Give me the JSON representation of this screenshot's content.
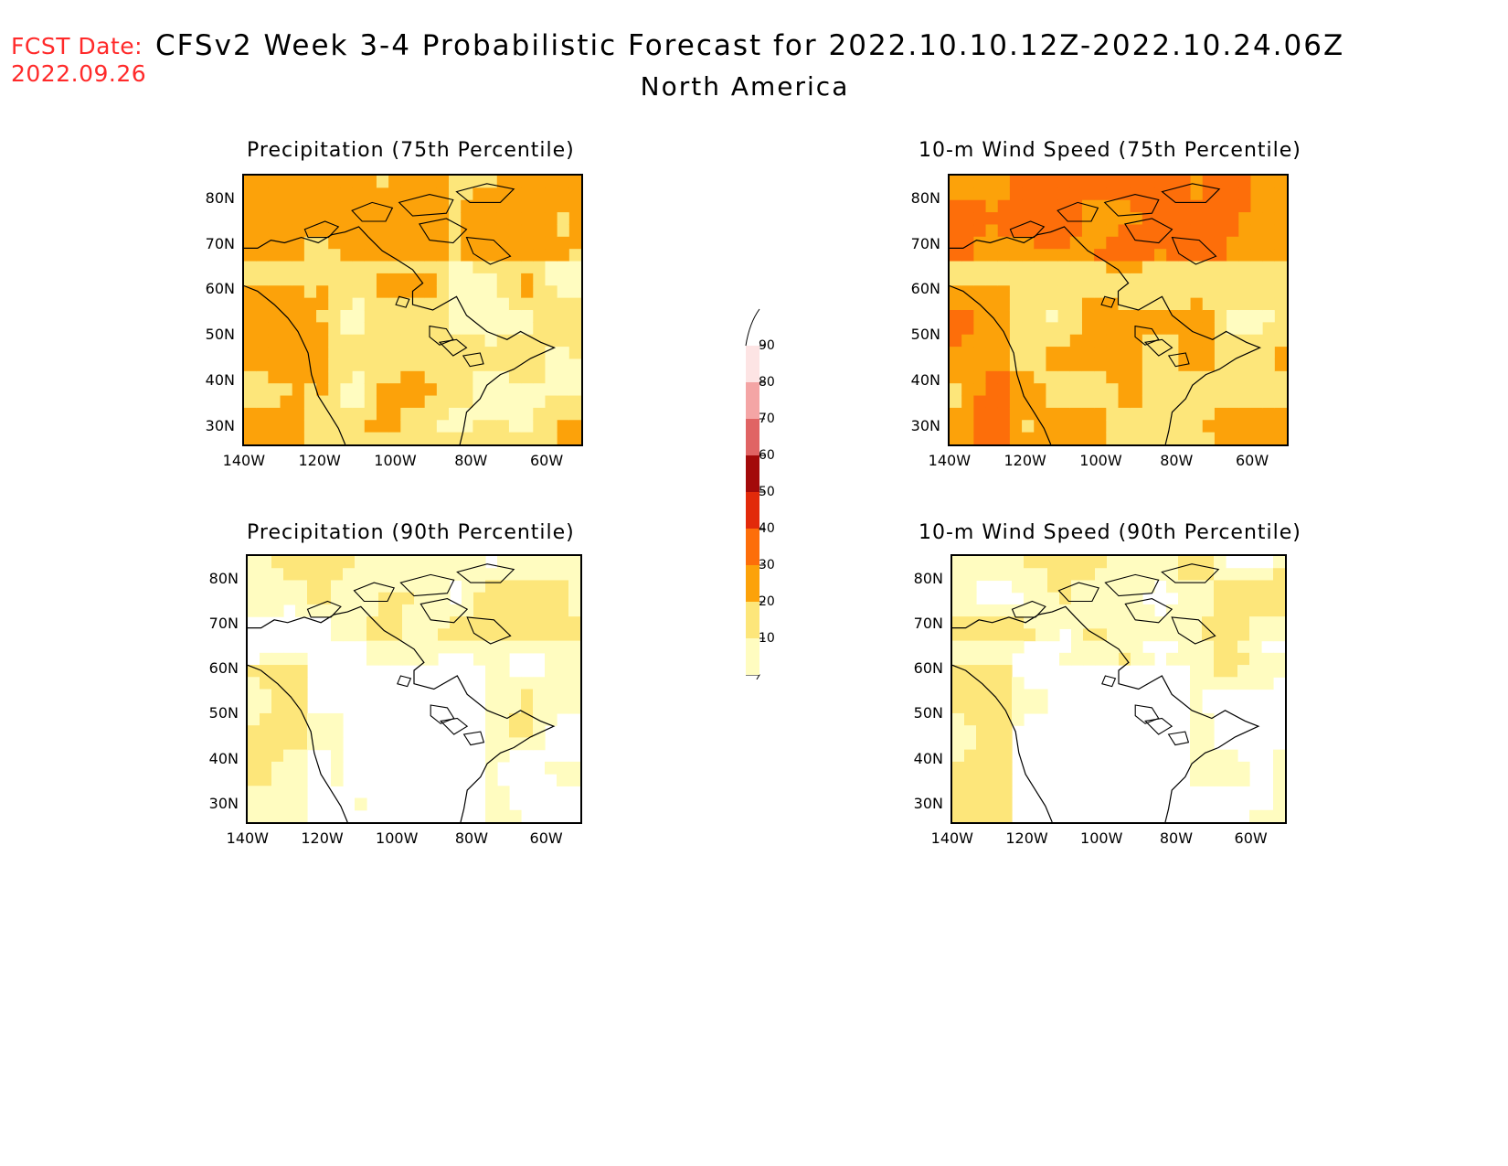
{
  "header": {
    "fcst_label": "FCST Date:",
    "fcst_date": "2022.09.26",
    "title": "CFSv2 Week 3-4 Probabilistic Forecast for 2022.10.10.12Z-2022.10.24.06Z",
    "region": "North America"
  },
  "panels": [
    {
      "id": "precip75",
      "title": "Precipitation (75th Percentile)",
      "level": "high"
    },
    {
      "id": "wind75",
      "title": "10-m Wind Speed (75th Percentile)",
      "level": "highest"
    },
    {
      "id": "precip90",
      "title": "Precipitation (90th Percentile)",
      "level": "low"
    },
    {
      "id": "wind90",
      "title": "10-m Wind Speed (90th Percentile)",
      "level": "low"
    }
  ],
  "axes": {
    "lat_labels": [
      "80N",
      "70N",
      "60N",
      "50N",
      "40N",
      "30N"
    ],
    "lon_labels": [
      "140W",
      "120W",
      "100W",
      "80W",
      "60W"
    ]
  },
  "colorbar": {
    "levels": [
      "10",
      "20",
      "30",
      "40",
      "50",
      "60",
      "70",
      "80",
      "90"
    ],
    "colors": [
      "#fffcc0",
      "#fde67a",
      "#fca20a",
      "#fd6e0a",
      "#e22a0a",
      "#a30a0a",
      "#e06464",
      "#f4a5a5",
      "#fde4e4"
    ]
  }
}
